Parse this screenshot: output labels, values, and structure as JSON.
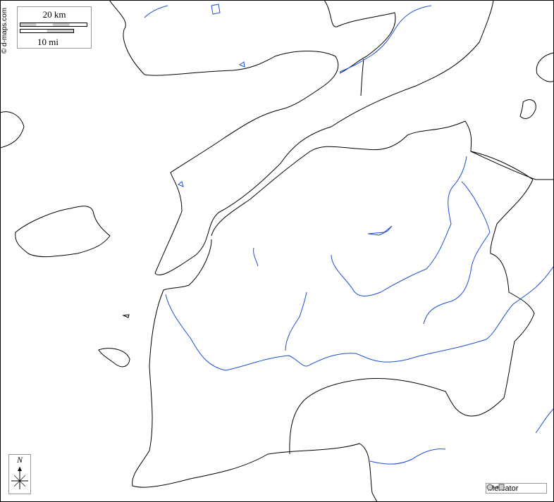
{
  "map": {
    "credit": "© d-maps.com",
    "scale": {
      "km_label": "20 km",
      "mi_label": "10 mi"
    },
    "compass": {
      "north_label": "N"
    },
    "projection": {
      "label": "Mercator",
      "icon": "circle-to-square-icon"
    },
    "colors": {
      "coast": "#000000",
      "river": "#1a4fd6",
      "background": "#ffffff"
    }
  }
}
